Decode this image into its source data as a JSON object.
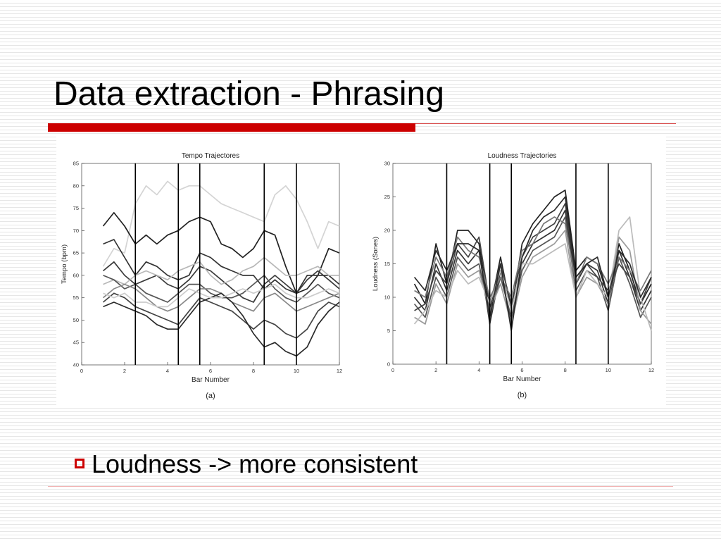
{
  "slide": {
    "title": "Data extraction - Phrasing",
    "bullet": "Loudness -> more consistent",
    "accent_color": "#cc0000"
  },
  "chart_data": [
    {
      "type": "line",
      "title": "Tempo Trajectores",
      "xlabel": "Bar Number",
      "ylabel": "Tempo (bpm)",
      "caption": "(a)",
      "xlim": [
        0,
        12
      ],
      "ylim": [
        40,
        85
      ],
      "xticks": [
        0,
        2,
        4,
        6,
        8,
        10,
        12
      ],
      "yticks": [
        40,
        45,
        50,
        55,
        60,
        65,
        70,
        75,
        80,
        85
      ],
      "phrase_boundaries": [
        2.5,
        4.5,
        5.5,
        8.5,
        10
      ],
      "x": [
        1,
        1.5,
        2,
        2.5,
        3,
        3.5,
        4,
        4.5,
        5,
        5.5,
        6,
        6.5,
        7,
        7.5,
        8,
        8.5,
        9,
        9.5,
        10,
        10.5,
        11,
        11.5,
        12
      ],
      "series": [
        {
          "color": "#d4d4d4",
          "values": [
            62,
            66,
            65,
            76,
            80,
            78,
            81,
            79,
            80,
            80,
            78,
            76,
            75,
            74,
            73,
            72,
            78,
            80,
            77,
            72,
            66,
            72,
            71
          ]
        },
        {
          "color": "#222222",
          "values": [
            71,
            74,
            71,
            67,
            69,
            67,
            69,
            70,
            72,
            73,
            72,
            67,
            66,
            64,
            66,
            70,
            69,
            62,
            56,
            57,
            60,
            66,
            65
          ]
        },
        {
          "color": "#333333",
          "values": [
            67,
            68,
            64,
            60,
            63,
            62,
            60,
            59,
            60,
            65,
            64,
            62,
            61,
            60,
            60,
            57,
            59,
            57,
            56,
            60,
            60,
            60,
            58
          ]
        },
        {
          "color": "#3a3a3a",
          "values": [
            61,
            63,
            60,
            58,
            59,
            60,
            58,
            57,
            59,
            62,
            61,
            59,
            57,
            55,
            54,
            58,
            60,
            58,
            56,
            59,
            61,
            59,
            57
          ]
        },
        {
          "color": "#b8b8b8",
          "values": [
            58,
            59,
            58,
            60,
            61,
            60,
            59,
            61,
            62,
            63,
            60,
            58,
            59,
            61,
            62,
            64,
            62,
            60,
            60,
            61,
            62,
            60,
            60
          ]
        },
        {
          "color": "#555555",
          "values": [
            60,
            59,
            57,
            58,
            56,
            55,
            54,
            56,
            58,
            58,
            56,
            55,
            55,
            56,
            58,
            60,
            57,
            55,
            54,
            56,
            58,
            56,
            55
          ]
        },
        {
          "color": "#888888",
          "values": [
            55,
            57,
            58,
            57,
            55,
            53,
            52,
            53,
            55,
            57,
            57,
            56,
            54,
            53,
            52,
            55,
            56,
            54,
            52,
            53,
            54,
            55,
            56
          ]
        },
        {
          "color": "#444444",
          "values": [
            54,
            56,
            55,
            53,
            52,
            51,
            50,
            49,
            52,
            55,
            54,
            53,
            52,
            50,
            48,
            50,
            49,
            47,
            46,
            48,
            52,
            54,
            53
          ]
        },
        {
          "color": "#2a2a2a",
          "values": [
            53,
            54,
            53,
            52,
            51,
            49,
            48,
            48,
            51,
            54,
            55,
            56,
            54,
            51,
            47,
            44,
            45,
            43,
            42,
            44,
            49,
            52,
            54
          ]
        },
        {
          "color": "#cccccc",
          "values": [
            56,
            55,
            56,
            54,
            54,
            53,
            53,
            55,
            57,
            56,
            55,
            55,
            56,
            57,
            56,
            57,
            58,
            56,
            55,
            55,
            56,
            57,
            56
          ]
        }
      ]
    },
    {
      "type": "line",
      "title": "Loudness Trajectories",
      "xlabel": "Bar Number",
      "ylabel": "Loudness (Sones)",
      "caption": "(b)",
      "xlim": [
        0,
        12
      ],
      "ylim": [
        0,
        30
      ],
      "xticks": [
        0,
        2,
        4,
        6,
        8,
        10,
        12
      ],
      "yticks": [
        0,
        5,
        10,
        15,
        20,
        25,
        30
      ],
      "phrase_boundaries": [
        2.5,
        4.5,
        5.5,
        8.5,
        10
      ],
      "x": [
        1,
        1.5,
        2,
        2.5,
        3,
        3.5,
        4,
        4.5,
        5,
        5.5,
        6,
        6.5,
        7,
        7.5,
        8,
        8.5,
        9,
        9.5,
        10,
        10.5,
        11,
        11.5,
        12
      ],
      "series": [
        {
          "color": "#222222",
          "values": [
            12,
            9,
            18,
            12,
            20,
            20,
            18,
            8,
            16,
            8,
            18,
            21,
            23,
            25,
            26,
            14,
            16,
            15,
            10,
            18,
            14,
            9,
            12
          ]
        },
        {
          "color": "#333333",
          "values": [
            10,
            8,
            15,
            11,
            17,
            15,
            17,
            6,
            14,
            6,
            15,
            18,
            19,
            20,
            23,
            12,
            15,
            14,
            9,
            17,
            13,
            8,
            11
          ]
        },
        {
          "color": "#555555",
          "values": [
            9,
            7,
            13,
            10,
            16,
            14,
            15,
            7,
            13,
            7,
            14,
            17,
            18,
            19,
            22,
            11,
            14,
            13,
            8,
            16,
            12,
            7,
            10
          ]
        },
        {
          "color": "#444444",
          "values": [
            8,
            9,
            14,
            12,
            18,
            16,
            19,
            9,
            15,
            9,
            16,
            19,
            20,
            21,
            24,
            13,
            15,
            13,
            11,
            15,
            13,
            9,
            13
          ]
        },
        {
          "color": "#9a9a9a",
          "values": [
            7,
            6,
            12,
            9,
            15,
            13,
            14,
            8,
            12,
            6,
            13,
            16,
            17,
            18,
            20,
            10,
            13,
            12,
            9,
            19,
            17,
            8,
            6
          ]
        },
        {
          "color": "#bbbbbb",
          "values": [
            6,
            8,
            11,
            10,
            14,
            12,
            13,
            9,
            14,
            8,
            15,
            15,
            16,
            17,
            18,
            10,
            14,
            12,
            10,
            20,
            22,
            10,
            5
          ]
        },
        {
          "color": "#777777",
          "values": [
            11,
            10,
            16,
            13,
            19,
            17,
            16,
            10,
            13,
            10,
            17,
            18,
            21,
            22,
            21,
            12,
            16,
            15,
            12,
            16,
            14,
            11,
            14
          ]
        },
        {
          "color": "#2a2a2a",
          "values": [
            13,
            11,
            17,
            14,
            18,
            18,
            17,
            7,
            15,
            5,
            16,
            20,
            22,
            23,
            25,
            13,
            15,
            16,
            10,
            17,
            15,
            10,
            13
          ]
        }
      ]
    }
  ]
}
